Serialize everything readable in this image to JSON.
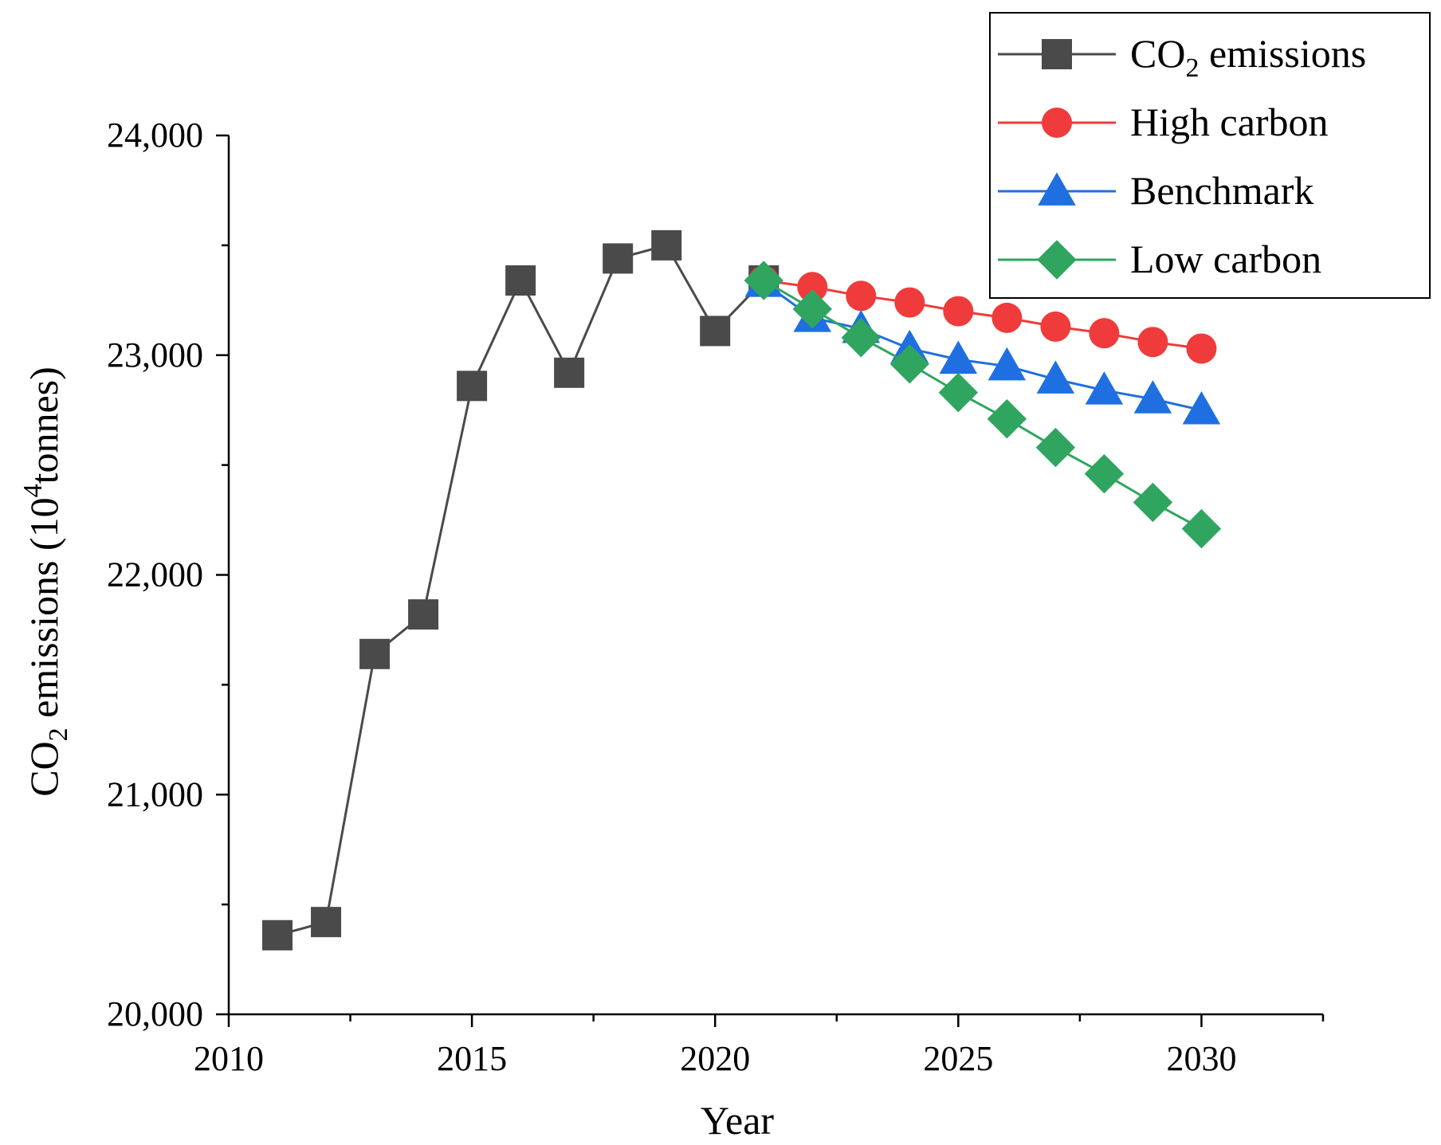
{
  "chart_data": {
    "type": "line",
    "title": "",
    "xlabel": "Year",
    "ylabel": {
      "prefix": "CO",
      "sub": "2",
      "middle": " emissions (10",
      "sup": "4",
      "suffix": "tonnes)"
    },
    "xlim": [
      2010,
      2032.5
    ],
    "ylim": [
      20000,
      24000
    ],
    "x_ticks": [
      2010,
      2015,
      2020,
      2025,
      2030
    ],
    "x_tick_labels": [
      "2010",
      "2015",
      "2020",
      "2025",
      "2030"
    ],
    "y_ticks": [
      20000,
      21000,
      22000,
      23000,
      24000
    ],
    "y_tick_labels": [
      "20,000",
      "21,000",
      "22,000",
      "23,000",
      "24,000"
    ],
    "legend_position": "top-right",
    "series": [
      {
        "key": "co2",
        "name": "CO2 emissions",
        "legend": {
          "prefix": "CO",
          "sub": "2",
          "suffix": " emissions"
        },
        "color": "#4a4a4a",
        "marker": "square",
        "x": [
          2011,
          2012,
          2013,
          2014,
          2015,
          2016,
          2017,
          2018,
          2019,
          2020,
          2021
        ],
        "values": [
          20360,
          20420,
          21640,
          21820,
          22860,
          23340,
          22920,
          23440,
          23500,
          23110,
          23340
        ]
      },
      {
        "key": "high",
        "name": "High carbon",
        "legend": {
          "prefix": "High carbon",
          "sub": "",
          "suffix": ""
        },
        "color": "#ef3b3b",
        "marker": "circle",
        "x": [
          2021,
          2022,
          2023,
          2024,
          2025,
          2026,
          2027,
          2028,
          2029,
          2030
        ],
        "values": [
          23340,
          23310,
          23270,
          23240,
          23200,
          23170,
          23130,
          23100,
          23060,
          23030
        ]
      },
      {
        "key": "bench",
        "name": "Benchmark",
        "legend": {
          "prefix": "Benchmark",
          "sub": "",
          "suffix": ""
        },
        "color": "#1f6fe0",
        "marker": "triangle",
        "x": [
          2021,
          2022,
          2023,
          2024,
          2025,
          2026,
          2027,
          2028,
          2029,
          2030
        ],
        "values": [
          23330,
          23170,
          23120,
          23030,
          22980,
          22950,
          22890,
          22840,
          22800,
          22750
        ]
      },
      {
        "key": "low",
        "name": "Low carbon",
        "legend": {
          "prefix": "Low carbon",
          "sub": "",
          "suffix": ""
        },
        "color": "#2fa560",
        "marker": "diamond",
        "x": [
          2021,
          2022,
          2023,
          2024,
          2025,
          2026,
          2027,
          2028,
          2029,
          2030
        ],
        "values": [
          23340,
          23210,
          23080,
          22960,
          22830,
          22710,
          22580,
          22460,
          22330,
          22210
        ]
      }
    ]
  }
}
